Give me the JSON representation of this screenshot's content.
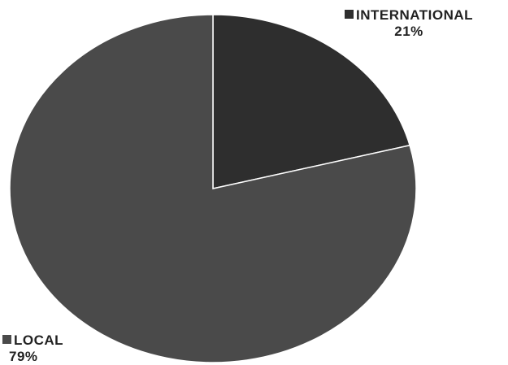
{
  "chart_data": {
    "type": "pie",
    "title": "",
    "slices": [
      {
        "label": "INTERNATIONAL",
        "percent_label": "21%",
        "value": 21,
        "color": "#2e2e2e"
      },
      {
        "label": "LOCAL",
        "percent_label": "79%",
        "value": 79,
        "color": "#4a4a4a"
      }
    ],
    "start_angle": "12 o'clock",
    "direction": "clockwise",
    "legend_placement": "beside-slices"
  }
}
